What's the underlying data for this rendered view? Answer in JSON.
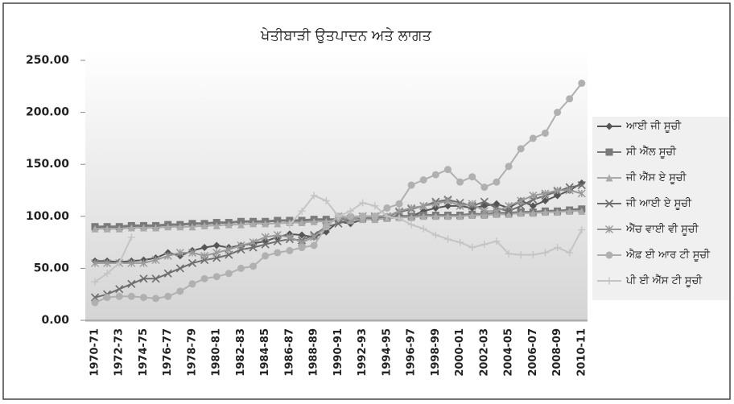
{
  "chart_data": {
    "type": "line",
    "title": "ਖੇਤੀਬਾੜੀ ਉਤਪਾਦਨ ਅਤੇ ਲਾਗਤ",
    "categories": [
      "1970-71",
      null,
      "1972-73",
      null,
      "1974-75",
      null,
      "1976-77",
      null,
      "1978-79",
      null,
      "1980-81",
      null,
      "1982-83",
      null,
      "1984-85",
      null,
      "1986-87",
      null,
      "1988-89",
      null,
      "1990-91",
      null,
      "1992-93",
      null,
      "1994-95",
      null,
      "1996-97",
      null,
      "1998-99",
      null,
      "2000-01",
      null,
      "2002-03",
      null,
      "2004-05",
      null,
      "2006-07",
      null,
      "2008-09",
      null,
      "2010-11"
    ],
    "ylim": [
      0,
      250
    ],
    "yticks": [
      {
        "value": 0,
        "label": "0.00"
      },
      {
        "value": 50,
        "label": "50.00"
      },
      {
        "value": 100,
        "label": "100.00"
      },
      {
        "value": 150,
        "label": "150.00"
      },
      {
        "value": 200,
        "label": "200.00"
      },
      {
        "value": 250,
        "label": "250.00"
      }
    ],
    "grid": false,
    "legend": "right",
    "series": [
      {
        "name": "ਆਈ ਜੀ ਸੂਚੀ",
        "color": "#555555",
        "marker": "diamond",
        "values": [
          57,
          57,
          56,
          57,
          58,
          60,
          65,
          62,
          67,
          70,
          72,
          70,
          72,
          74,
          76,
          80,
          83,
          82,
          80,
          85,
          95,
          93,
          97,
          98,
          100,
          100,
          100,
          105,
          108,
          110,
          110,
          108,
          110,
          112,
          108,
          115,
          110,
          115,
          120,
          125,
          132
        ]
      },
      {
        "name": "ਸੀ ਐੱਲ ਸੂਚੀ",
        "color": "#7a7a7a",
        "marker": "square",
        "values": [
          90,
          90,
          90,
          91,
          91,
          91,
          92,
          92,
          93,
          93,
          94,
          94,
          95,
          95,
          95,
          96,
          96,
          96,
          97,
          97,
          97,
          98,
          98,
          99,
          99,
          100,
          100,
          101,
          101,
          101,
          101,
          102,
          102,
          103,
          103,
          104,
          104,
          105,
          105,
          106,
          107
        ]
      },
      {
        "name": "ਜੀ ਐੱਸ ਏ ਸੂਚੀ",
        "color": "#aaaaaa",
        "marker": "triangle",
        "values": [
          88,
          88,
          88,
          89,
          89,
          89,
          90,
          90,
          90,
          91,
          91,
          92,
          92,
          93,
          93,
          93,
          94,
          94,
          95,
          95,
          96,
          96,
          97,
          97,
          98,
          99,
          99,
          100,
          100,
          100,
          100,
          101,
          101,
          102,
          102,
          103,
          103,
          104,
          104,
          105,
          105
        ]
      },
      {
        "name": "ਜੀ ਆਈ ਏ ਸੂਚੀ",
        "color": "#6e6e6e",
        "marker": "x",
        "values": [
          22,
          25,
          30,
          35,
          40,
          40,
          45,
          50,
          55,
          58,
          60,
          63,
          68,
          70,
          73,
          76,
          78,
          77,
          82,
          90,
          93,
          97,
          100,
          100,
          100,
          104,
          107,
          110,
          114,
          116,
          113,
          110,
          114,
          108,
          105,
          110,
          116,
          120,
          124,
          128,
          130
        ]
      },
      {
        "name": "ਐੱਚ ਵਾਈ ਵੀ ਸੂਚੀ",
        "color": "#999999",
        "marker": "star",
        "values": [
          55,
          55,
          55,
          55,
          55,
          58,
          62,
          65,
          65,
          62,
          65,
          68,
          72,
          75,
          80,
          82,
          80,
          75,
          80,
          90,
          100,
          97,
          100,
          100,
          100,
          105,
          108,
          110,
          112,
          115,
          110,
          112,
          105,
          105,
          110,
          115,
          120,
          122,
          125,
          125,
          122
        ]
      },
      {
        "name": "ਐਫ਼ ਈ ਆਰ ਟੀ ਸੂਚੀ",
        "color": "#b0b0b0",
        "marker": "circle",
        "values": [
          17,
          22,
          23,
          23,
          22,
          21,
          23,
          28,
          35,
          40,
          42,
          45,
          50,
          52,
          62,
          65,
          67,
          70,
          72,
          90,
          100,
          100,
          100,
          100,
          108,
          112,
          130,
          135,
          140,
          145,
          133,
          138,
          128,
          133,
          148,
          165,
          175,
          180,
          200,
          213,
          228
        ]
      },
      {
        "name": "ਪੀ ਈ ਐੱਸ ਟੀ ਸੂਚੀ",
        "color": "#c4c4c4",
        "marker": "plus",
        "values": [
          37,
          45,
          55,
          80,
          null,
          null,
          null,
          null,
          null,
          null,
          null,
          null,
          null,
          null,
          null,
          null,
          92,
          105,
          120,
          115,
          100,
          105,
          113,
          110,
          100,
          98,
          92,
          88,
          82,
          78,
          75,
          70,
          73,
          76,
          64,
          63,
          63,
          65,
          70,
          65,
          87
        ]
      }
    ]
  }
}
